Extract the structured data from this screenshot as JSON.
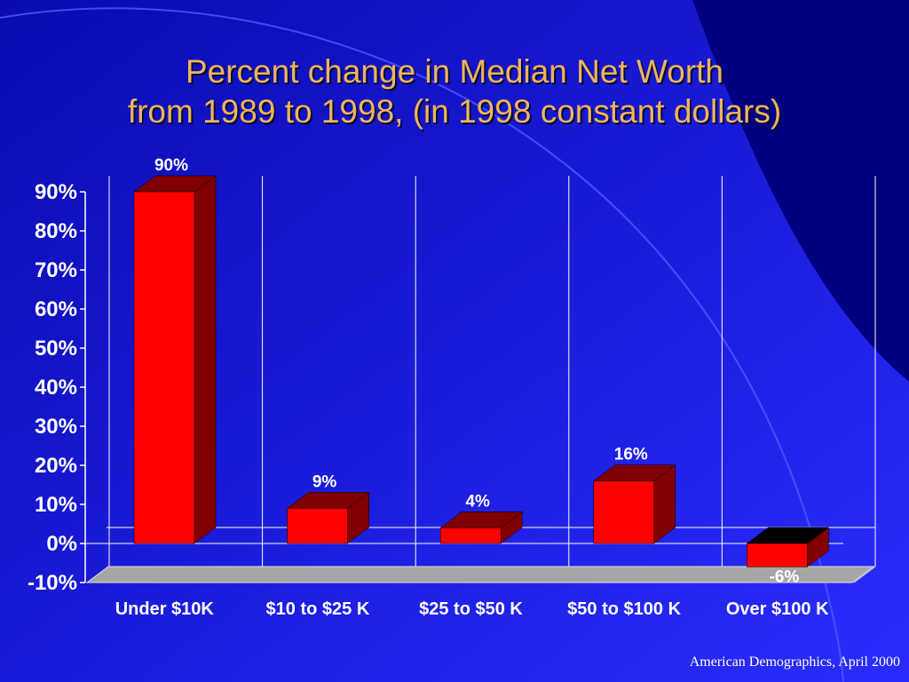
{
  "slide": {
    "title_line1": "Percent change in Median Net Worth",
    "title_line2": "from 1989 to 1998, (in 1998 constant dollars)",
    "source": "American Demographics, April 2000"
  },
  "colors": {
    "background_dark": "#0a0ab0",
    "background_light": "#2a2cff",
    "corner_accent": "#000080",
    "title": "#f0b45a",
    "bar_front": "#ff0000",
    "bar_side": "#800000",
    "negative_top": "#000000",
    "floor": "#a6a6a6",
    "text": "#ffffff"
  },
  "chart_data": {
    "type": "bar",
    "categories": [
      "Under $10K",
      "$10 to $25 K",
      "$25 to $50 K",
      "$50 to $100 K",
      "Over $100 K"
    ],
    "values": [
      90,
      9,
      4,
      16,
      -6
    ],
    "data_labels": [
      "90%",
      "9%",
      "4%",
      "16%",
      "-6%"
    ],
    "title": "Percent change in Median Net Worth from 1989 to 1998, (in 1998 constant dollars)",
    "xlabel": "",
    "ylabel": "",
    "ylim": [
      -10,
      90
    ],
    "yticks": [
      90,
      80,
      70,
      60,
      50,
      40,
      30,
      20,
      10,
      0,
      -10
    ],
    "ytick_labels": [
      "90%",
      "80%",
      "70%",
      "60%",
      "50%",
      "40%",
      "30%",
      "20%",
      "10%",
      "0%",
      "-10%"
    ],
    "grid": "vertical lines between categories",
    "legend": "none",
    "style": "3d-bar"
  }
}
